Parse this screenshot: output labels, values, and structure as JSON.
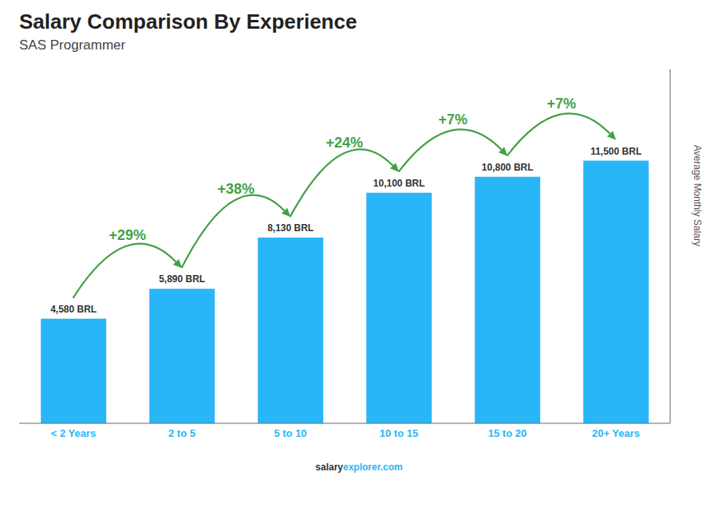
{
  "chart_data": {
    "type": "bar",
    "title": "Salary Comparison By Experience",
    "subtitle": "SAS Programmer",
    "ylabel": "Average Monthly Salary",
    "categories": [
      "< 2 Years",
      "2 to 5",
      "5 to 10",
      "10 to 15",
      "15 to 20",
      "20+ Years"
    ],
    "values": [
      4580,
      5890,
      8130,
      10100,
      10800,
      11500
    ],
    "value_labels": [
      "4,580 BRL",
      "5,890 BRL",
      "8,130 BRL",
      "10,100 BRL",
      "10,800 BRL",
      "11,500 BRL"
    ],
    "data_labels": true,
    "annotations": [
      "+29%",
      "+38%",
      "+24%",
      "+7%",
      "+7%"
    ],
    "watermark": [
      "salary",
      "explorer.com"
    ],
    "color": "#29B6F6",
    "ylim": [
      0,
      15500
    ],
    "tick_labels": "x",
    "grid": false
  }
}
